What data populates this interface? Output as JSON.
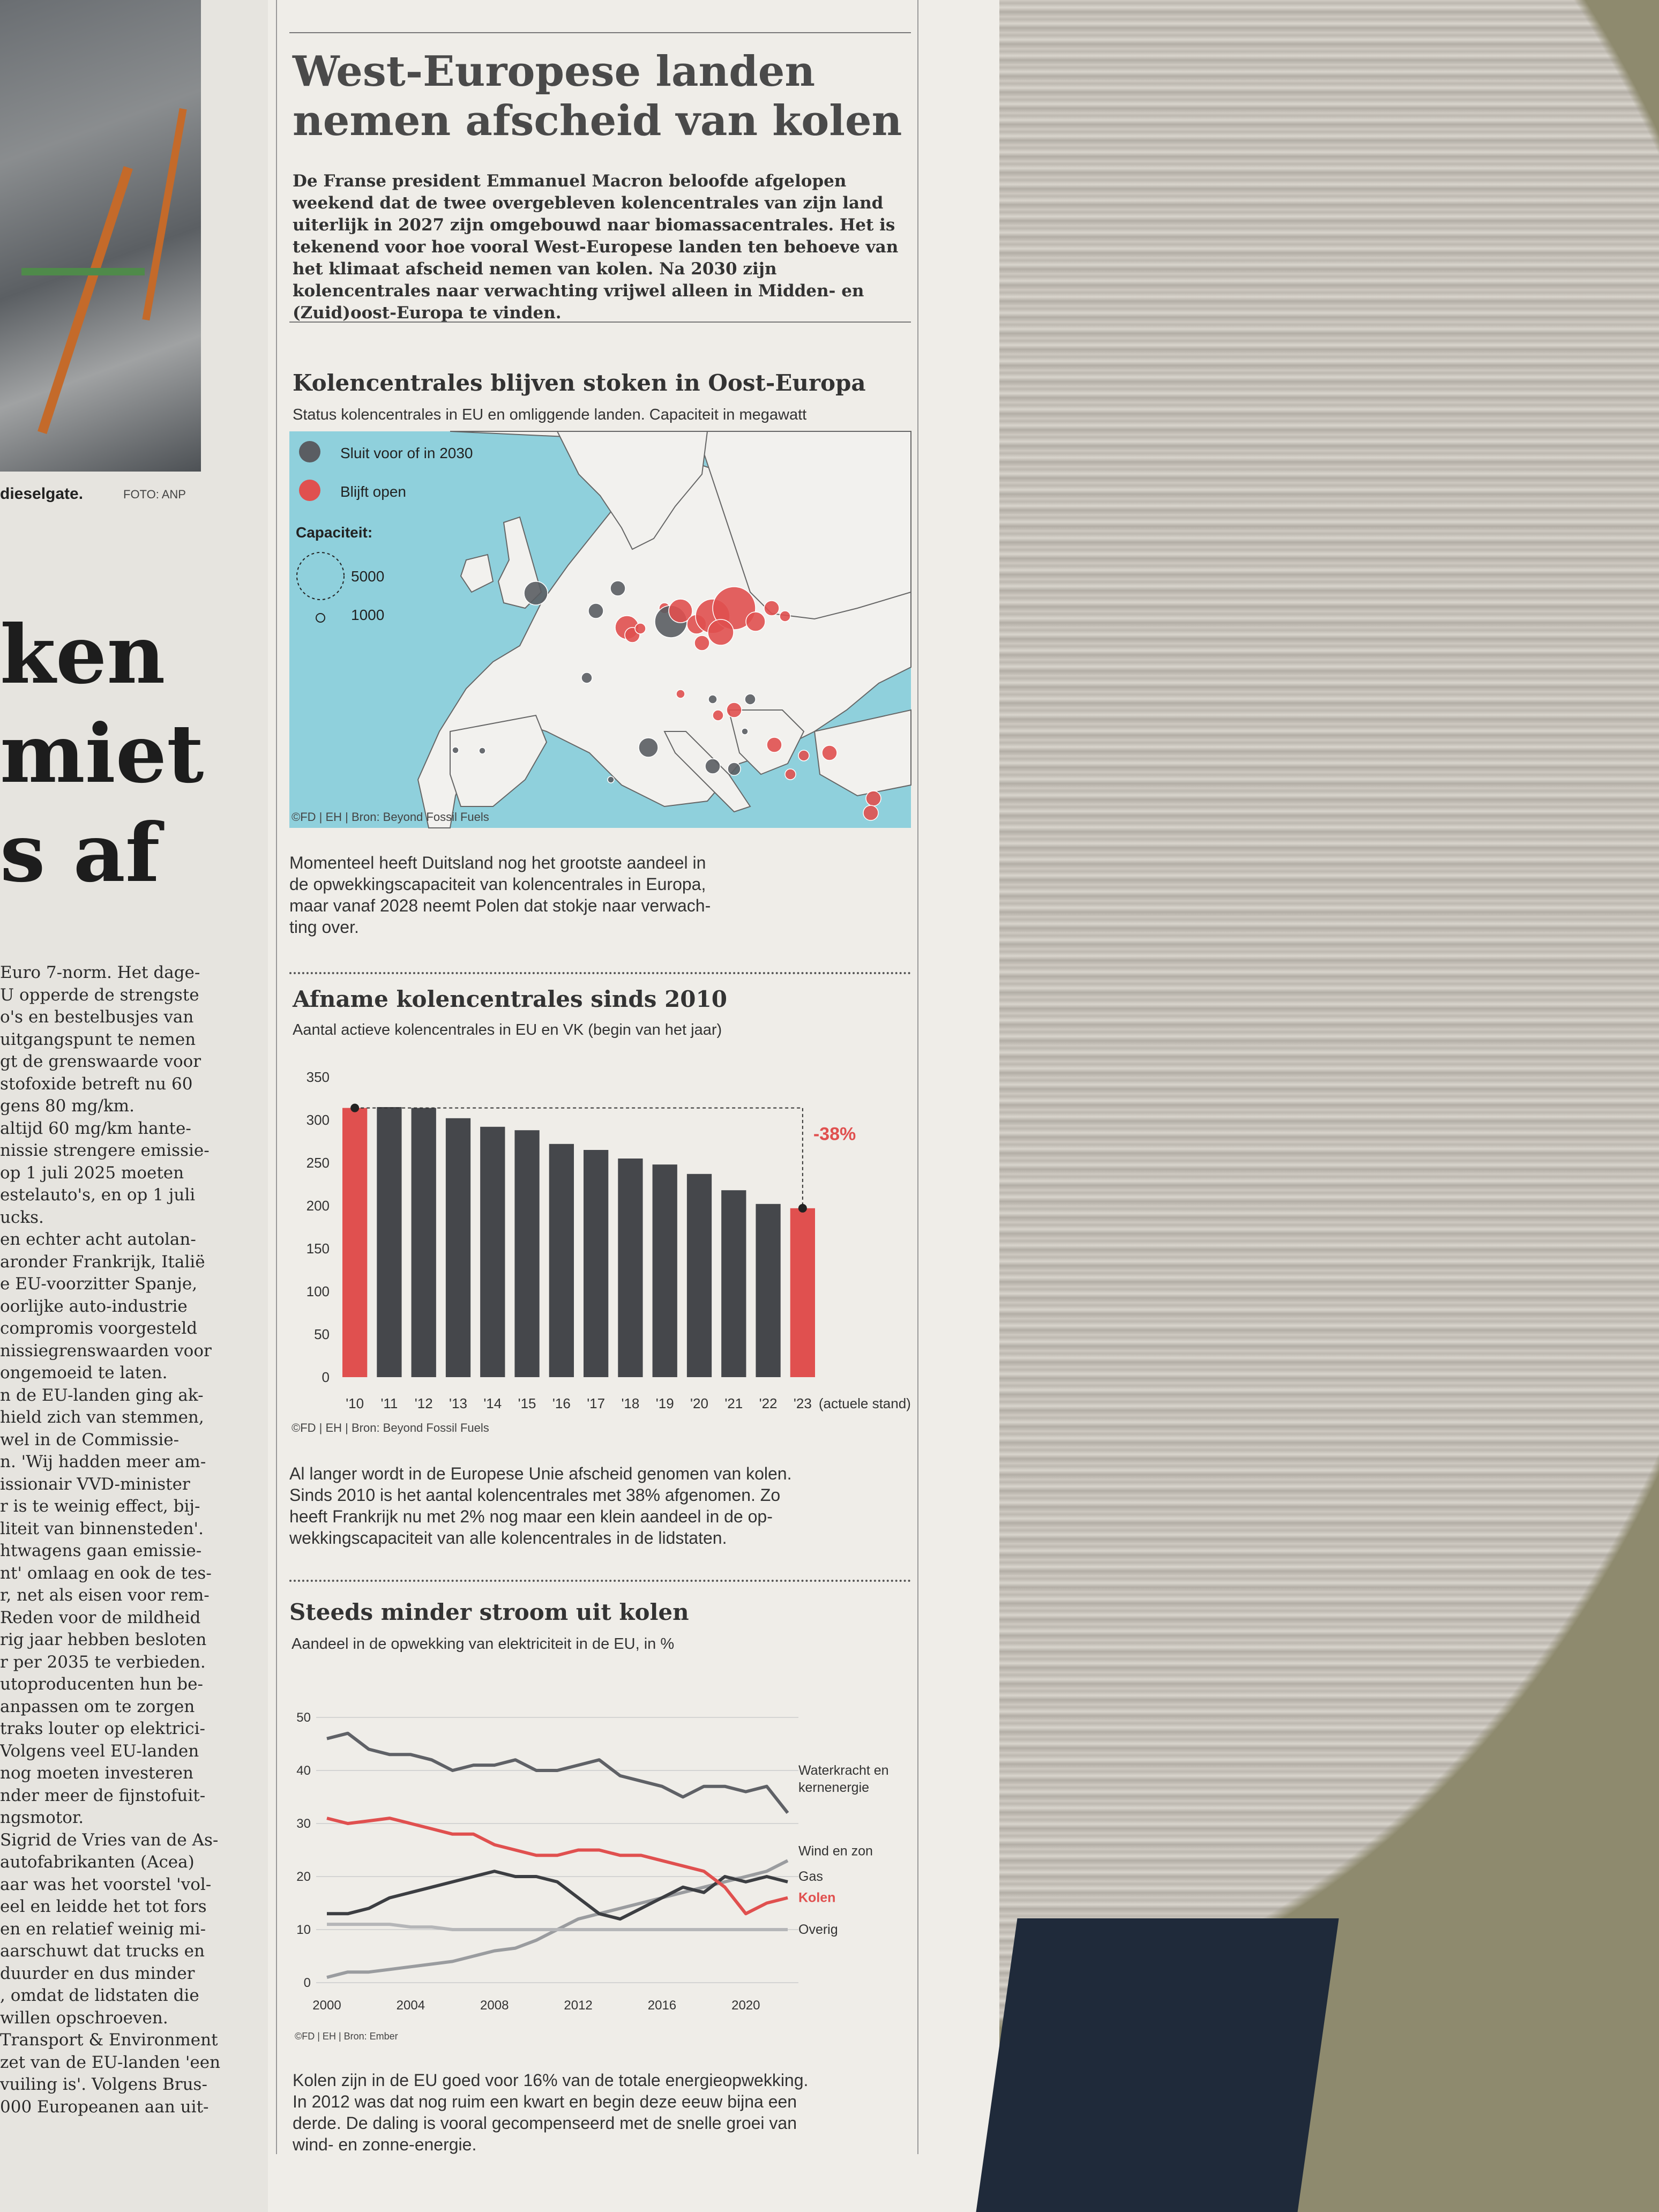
{
  "left_column": {
    "caption": "dieselgate.",
    "credit": "FOTO: ANP",
    "headline_lines": [
      "ken",
      "miet",
      "s af"
    ],
    "text_lines": [
      "Euro 7-norm. Het dage-",
      "U opperde de strengste",
      "o's en bestelbusjes van",
      "uitgangspunt te nemen",
      "gt de grenswaarde voor",
      "stofoxide betreft nu 60",
      "gens 80 mg/km.",
      "altijd 60 mg/km hante-",
      "nissie strengere emissie-",
      "op 1 juli 2025 moeten",
      "estelauto's, en op 1 juli",
      "ucks.",
      "en echter acht autolan-",
      "aronder Frankrijk, Italië",
      "e EU-voorzitter Spanje,",
      "oorlijke auto-industrie",
      "compromis voorgesteld",
      "nissiegrenswaarden voor",
      "ongemoeid te laten.",
      "n de EU-landen ging ak-",
      "hield zich van stemmen,",
      "wel in de Commissie-",
      "n. 'Wij hadden meer am-",
      "issionair VVD-minister",
      "r is te weinig effect, bij-",
      "liteit van binnensteden'.",
      "htwagens gaan emissie-",
      "nt' omlaag en ook de tes-",
      "r, net als eisen voor rem-",
      "Reden voor de mildheid",
      "rig jaar hebben besloten",
      "r per 2035 te verbieden.",
      "utoproducenten hun be-",
      "anpassen om te zorgen",
      "traks louter op elektrici-",
      "Volgens veel EU-landen",
      "nog moeten investeren",
      "nder meer de fijnstofuit-",
      "ngsmotor.",
      "Sigrid de Vries van de As-",
      "autofabrikanten (Acea)",
      "aar was het voorstel 'vol-",
      "eel en leidde het tot fors",
      "en en relatief weinig mi-",
      "aarschuwt dat trucks en",
      "duurder en dus minder",
      ", omdat de lidstaten die",
      "willen opschroeven.",
      "Transport & Environment",
      "zet van de EU-landen 'een",
      "vuiling is'. Volgens Brus-",
      "000 Europeanen aan uit-"
    ]
  },
  "article": {
    "title_line1": "West-Europese landen",
    "title_line2": "nemen afscheid van kolen",
    "lede": "De Franse president Emmanuel Macron beloofde afgelopen weekend dat de twee overgebleven kolencentrales van zijn land uiterlijk in 2027 zijn omgebouwd naar biomassacentrales. Het is tekenend voor hoe vooral West-Europese landen ten behoeve van het klimaat afscheid nemen van kolen. Na 2030 zijn kolencentrales naar verwachting vrijwel alleen in Midden- en (Zuid)oost-Europa te vinden."
  },
  "map_section": {
    "title": "Kolencentrales blijven stoken in Oost-Europa",
    "subtitle": "Status kolencentrales in EU en omliggende landen. Capaciteit in megawatt",
    "legend_closing": "Sluit voor of in 2030",
    "legend_open": "Blijft open",
    "capacity_label": "Capaciteit:",
    "capacity_large": "5000",
    "capacity_small": "1000",
    "credit": "©FD | EH | Bron: Beyond Fossil Fuels",
    "color_closing": "#5a5d62",
    "color_open": "#e0504f",
    "color_sea": "#8fd0dc",
    "body": [
      "Momenteel heeft Duitsland nog het grootste aandeel in",
      "de opwekkingscapaciteit van kolencentrales in Europa,",
      "maar vanaf 2028 neemt Polen dat stokje naar verwach-",
      "ting over."
    ]
  },
  "bar_section": {
    "title": "Afname kolencentrales sinds 2010",
    "subtitle": "Aantal actieve kolencentrales in EU en VK (begin van het jaar)",
    "change_label": "-38%",
    "last_note": "(actuele stand)",
    "credit": "©FD | EH | Bron: Beyond Fossil Fuels",
    "body": [
      "Al langer wordt in de Europese Unie afscheid genomen van kolen.",
      "Sinds 2010 is het aantal kolencentrales met 38% afgenomen. Zo",
      "heeft Frankrijk nu met 2% nog maar een klein aandeel in de op-",
      "wekkingscapaciteit van alle kolencentrales in de lidstaten."
    ]
  },
  "line_section": {
    "title": "Steeds minder stroom uit kolen",
    "subtitle": "Aandeel in de opwekking van elektriciteit in de EU, in %",
    "credit": "©FD | EH | Bron: Ember",
    "label_water_1": "Waterkracht en",
    "label_water_2": "kernenergie",
    "body": [
      "Kolen zijn in de EU goed voor 16% van de totale energieopwekking.",
      "In 2012 was dat nog ruim een kwart en begin deze eeuw bijna een",
      "derde. De daling is vooral gecompenseerd met de snelle groei van",
      "wind- en zonne-energie."
    ]
  },
  "chart_data": [
    {
      "type": "bar",
      "title": "Afname kolencentrales sinds 2010",
      "subtitle": "Aantal actieve kolencentrales in EU en VK (begin van het jaar)",
      "categories": [
        "'10",
        "'11",
        "'12",
        "'13",
        "'14",
        "'15",
        "'16",
        "'17",
        "'18",
        "'19",
        "'20",
        "'21",
        "'22",
        "'23"
      ],
      "values": [
        314,
        315,
        314,
        302,
        292,
        288,
        272,
        265,
        255,
        248,
        237,
        218,
        202,
        197
      ],
      "highlight_color": "#e0504f",
      "bar_color": "#45474b",
      "highlighted": [
        "'10",
        "'23"
      ],
      "ylim": [
        0,
        350
      ],
      "yticks": [
        0,
        50,
        100,
        150,
        200,
        250,
        300,
        350
      ],
      "annotation": "-38%",
      "grid": false
    },
    {
      "type": "line",
      "title": "Steeds minder stroom uit kolen",
      "subtitle": "Aandeel in de opwekking van elektriciteit in de EU, in %",
      "x": [
        2000,
        2001,
        2002,
        2003,
        2004,
        2005,
        2006,
        2007,
        2008,
        2009,
        2010,
        2011,
        2012,
        2013,
        2014,
        2015,
        2016,
        2017,
        2018,
        2019,
        2020,
        2021,
        2022
      ],
      "xticks": [
        2000,
        2004,
        2008,
        2012,
        2016,
        2020
      ],
      "ylim": [
        0,
        50
      ],
      "yticks": [
        0,
        10,
        20,
        30,
        40,
        50
      ],
      "grid": true,
      "series": [
        {
          "name": "Waterkracht en kernenergie",
          "color": "#5f6166",
          "values": [
            46,
            47,
            44,
            43,
            43,
            42,
            40,
            41,
            41,
            42,
            40,
            40,
            41,
            42,
            39,
            38,
            37,
            35,
            37,
            37,
            36,
            37,
            32
          ]
        },
        {
          "name": "Wind en zon",
          "color": "#9a9c9f",
          "values": [
            1,
            2,
            2,
            2.5,
            3,
            3.5,
            4,
            5,
            6,
            6.5,
            8,
            10,
            12,
            13,
            14,
            15,
            16,
            17,
            18,
            19,
            20,
            21,
            23
          ]
        },
        {
          "name": "Gas",
          "color": "#3c3e42",
          "values": [
            13,
            13,
            14,
            16,
            17,
            18,
            19,
            20,
            21,
            20,
            20,
            19,
            16,
            13,
            12,
            14,
            16,
            18,
            17,
            20,
            19,
            20,
            19
          ]
        },
        {
          "name": "Kolen",
          "color": "#e0504f",
          "values": [
            31,
            30,
            30.5,
            31,
            30,
            29,
            28,
            28,
            26,
            25,
            24,
            24,
            25,
            25,
            24,
            24,
            23,
            22,
            21,
            18,
            13,
            15,
            16
          ]
        },
        {
          "name": "Overig",
          "color": "#b5b6b8",
          "values": [
            11,
            11,
            11,
            11,
            10.5,
            10.5,
            10,
            10,
            10,
            10,
            10,
            10,
            10,
            10,
            10,
            10,
            10,
            10,
            10,
            10,
            10,
            10,
            10
          ]
        }
      ]
    }
  ]
}
